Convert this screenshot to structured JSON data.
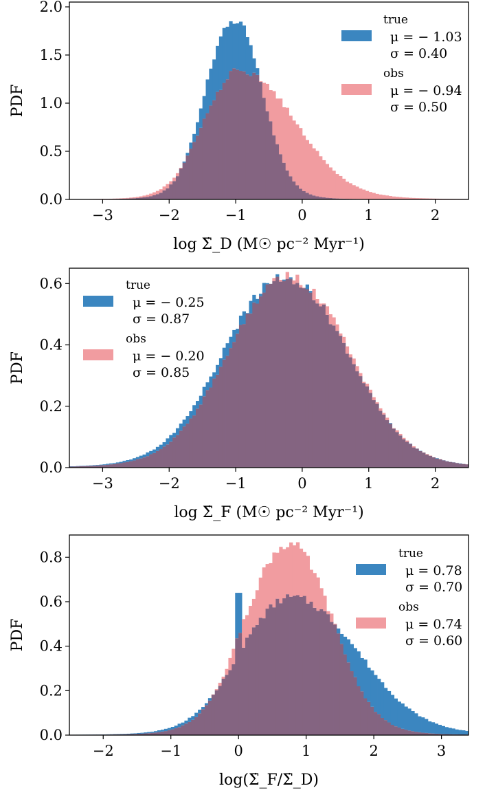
{
  "colors": {
    "true": "#3b86c0",
    "obs": "#f19ca0",
    "overlap": "#846481"
  },
  "chart_data": [
    {
      "type": "histogram",
      "xlabel": "log Σ̇_D (M☉ pc⁻² Myr⁻¹)",
      "ylabel": "PDF",
      "xlim": [
        -3.5,
        2.5
      ],
      "ylim": [
        0,
        2.05
      ],
      "xticks": [
        -3,
        -2,
        -1,
        0,
        1,
        2
      ],
      "yticks": [
        0.0,
        0.5,
        1.0,
        1.5,
        2.0
      ],
      "xtick_labels": [
        "−3",
        "−2",
        "−1",
        "0",
        "1",
        "2"
      ],
      "ytick_labels": [
        "0.0",
        "0.5",
        "1.0",
        "1.5",
        "2.0"
      ],
      "bin_width": 0.05,
      "grid": false,
      "legend_position": "upper-right",
      "series": [
        {
          "name": "true",
          "mu_text": "μ = − 1.03",
          "sigma_text": "σ = 0.40",
          "mu": -1.03,
          "sigma": 0.4,
          "peak": 1.87,
          "skew_right": 0.0
        },
        {
          "name": "obs",
          "mu_text": "μ = − 0.94",
          "sigma_text": "σ = 0.50",
          "mu": -0.94,
          "sigma": 0.5,
          "peak": 1.34,
          "skew_right": 0.55
        }
      ]
    },
    {
      "type": "histogram",
      "xlabel": "log Σ̇_F (M☉ pc⁻² Myr⁻¹)",
      "ylabel": "PDF",
      "xlim": [
        -3.5,
        2.5
      ],
      "ylim": [
        0,
        0.65
      ],
      "xticks": [
        -3,
        -2,
        -1,
        0,
        1,
        2
      ],
      "yticks": [
        0.0,
        0.2,
        0.4,
        0.6
      ],
      "xtick_labels": [
        "−3",
        "−2",
        "−1",
        "0",
        "1",
        "2"
      ],
      "ytick_labels": [
        "0.0",
        "0.2",
        "0.4",
        "0.6"
      ],
      "bin_width": 0.05,
      "grid": false,
      "legend_position": "upper-left",
      "series": [
        {
          "name": "true",
          "mu_text": "μ = − 0.25",
          "sigma_text": "σ = 0.87",
          "mu": -0.25,
          "sigma": 0.87,
          "peak": 0.62,
          "skew_right": 0.0
        },
        {
          "name": "obs",
          "mu_text": "μ = − 0.20",
          "sigma_text": "σ = 0.85",
          "mu": -0.2,
          "sigma": 0.85,
          "peak": 0.62,
          "skew_right": 0.0
        }
      ]
    },
    {
      "type": "histogram",
      "xlabel": "log(Σ̇_F/Σ̇_D)",
      "ylabel": "PDF",
      "xlim": [
        -2.5,
        3.4
      ],
      "ylim": [
        0,
        0.9
      ],
      "xticks": [
        -2,
        -1,
        0,
        1,
        2,
        3
      ],
      "yticks": [
        0.0,
        0.2,
        0.4,
        0.6,
        0.8
      ],
      "xtick_labels": [
        "−2",
        "−1",
        "0",
        "1",
        "2",
        "3"
      ],
      "ytick_labels": [
        "0.0",
        "0.2",
        "0.4",
        "0.6",
        "0.8"
      ],
      "bin_width": 0.05,
      "grid": false,
      "legend_position": "upper-right",
      "series": [
        {
          "name": "true",
          "mu_text": "μ = 0.78",
          "sigma_text": "σ = 0.70",
          "mu": 0.78,
          "sigma": 0.7,
          "peak": 0.62,
          "skew_right": 0.3,
          "spike_at": 0.0,
          "spike_value": 0.64
        },
        {
          "name": "obs",
          "mu_text": "μ = 0.74",
          "sigma_text": "σ = 0.60",
          "mu": 0.74,
          "sigma": 0.6,
          "peak": 0.86,
          "skew_right": 0.0
        }
      ]
    }
  ]
}
